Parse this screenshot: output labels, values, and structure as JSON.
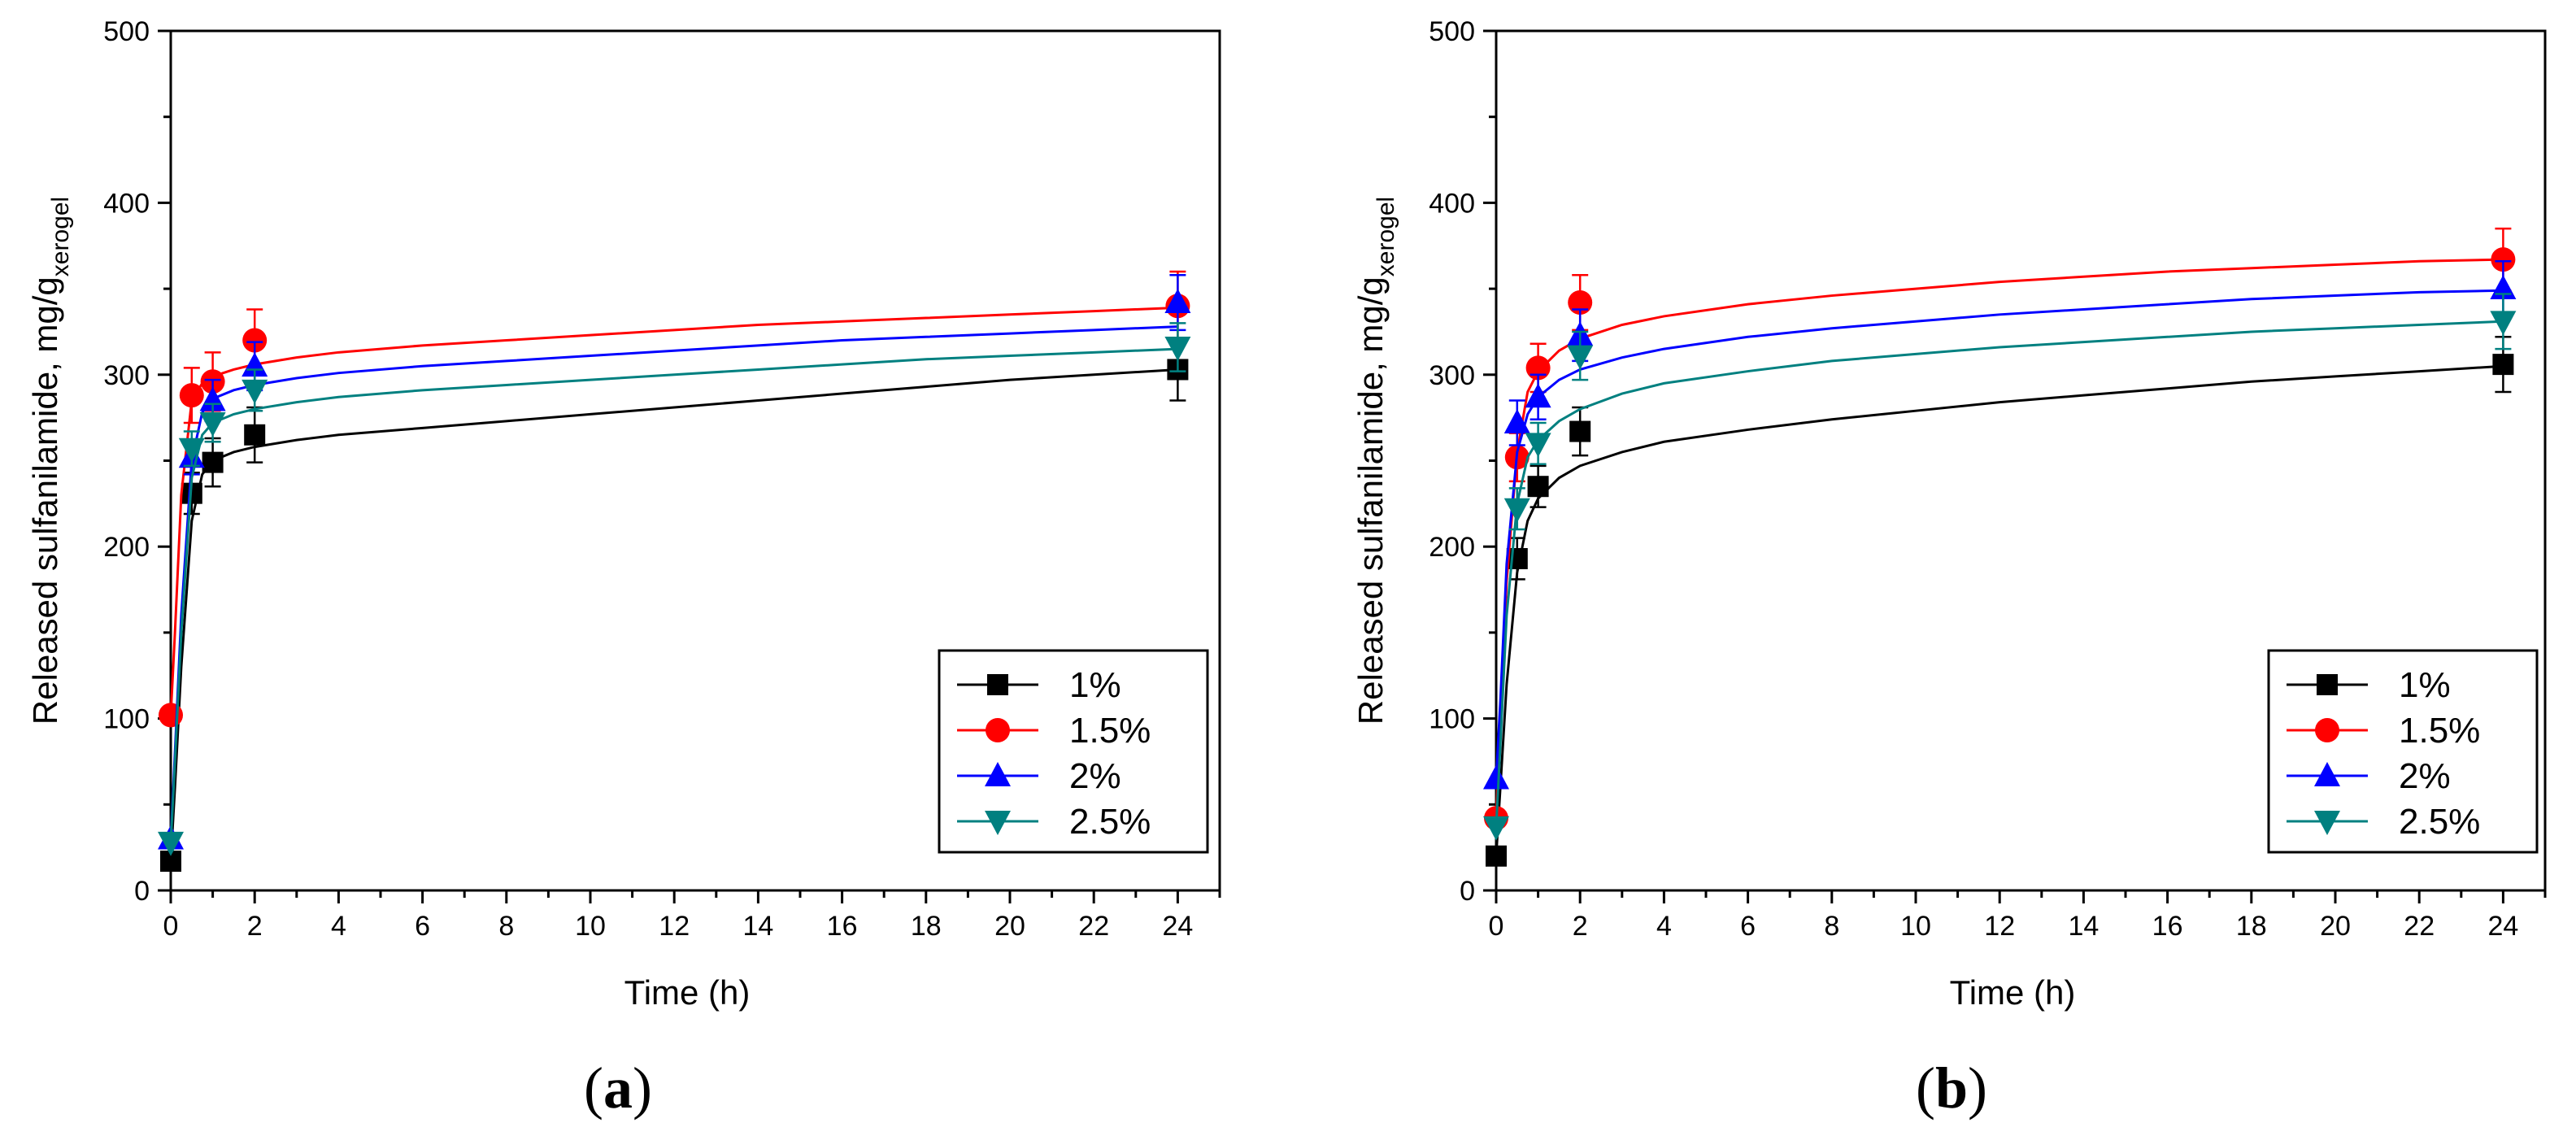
{
  "chart_data": [
    {
      "type": "scatter",
      "panel_label": "a",
      "panel_label_open": "(",
      "panel_label_close": ")",
      "xlabel": "Time (h)",
      "ylabel_main": "Released sulfanilamide, mg/g",
      "ylabel_sub": "xerogel",
      "xlim": [
        0,
        25
      ],
      "ylim": [
        0,
        500
      ],
      "xticks": [
        0,
        2,
        4,
        6,
        8,
        10,
        12,
        14,
        16,
        18,
        20,
        22,
        24
      ],
      "yticks": [
        0,
        100,
        200,
        300,
        400,
        500
      ],
      "legend_position": "lower-right",
      "series": [
        {
          "name": "1%",
          "color": "#000000",
          "marker": "square",
          "x": [
            0,
            0.5,
            1,
            2,
            24
          ],
          "y": [
            17,
            231,
            249,
            265,
            303
          ],
          "err": [
            0,
            12,
            14,
            16,
            18
          ],
          "fit_x": [
            0,
            0.1,
            0.25,
            0.5,
            0.75,
            1,
            1.5,
            2,
            3,
            4,
            6,
            8,
            10,
            12,
            14,
            16,
            18,
            20,
            22,
            24
          ],
          "fit_y": [
            17,
            60,
            130,
            215,
            242,
            250,
            255,
            258,
            262,
            265,
            269,
            273,
            277,
            281,
            285,
            289,
            293,
            297,
            300,
            303
          ]
        },
        {
          "name": "1.5%",
          "color": "#ff0000",
          "marker": "circle",
          "x": [
            0,
            0.5,
            1,
            2,
            24
          ],
          "y": [
            102,
            288,
            296,
            320,
            340
          ],
          "err": [
            0,
            16,
            17,
            18,
            20
          ],
          "fit_x": [
            0,
            0.1,
            0.25,
            0.5,
            0.75,
            1,
            1.5,
            2,
            3,
            4,
            6,
            8,
            10,
            12,
            14,
            16,
            18,
            20,
            22,
            24
          ],
          "fit_y": [
            102,
            150,
            230,
            285,
            295,
            299,
            303,
            306,
            310,
            313,
            317,
            320,
            323,
            326,
            329,
            331,
            333,
            335,
            337,
            339
          ]
        },
        {
          "name": "2%",
          "color": "#0000ff",
          "marker": "triangle-up",
          "x": [
            0,
            0.5,
            1,
            2,
            24
          ],
          "y": [
            30,
            252,
            285,
            305,
            342
          ],
          "err": [
            0,
            10,
            12,
            14,
            16
          ],
          "fit_x": [
            0,
            0.1,
            0.25,
            0.5,
            0.75,
            1,
            1.5,
            2,
            3,
            4,
            6,
            8,
            10,
            12,
            14,
            16,
            18,
            20,
            22,
            24
          ],
          "fit_y": [
            30,
            80,
            160,
            250,
            278,
            286,
            291,
            294,
            298,
            301,
            305,
            308,
            311,
            314,
            317,
            320,
            322,
            324,
            326,
            328
          ]
        },
        {
          "name": "2.5%",
          "color": "#008080",
          "marker": "triangle-down",
          "x": [
            0,
            0.5,
            1,
            2,
            24
          ],
          "y": [
            28,
            257,
            272,
            291,
            316
          ],
          "err": [
            0,
            10,
            11,
            12,
            14
          ],
          "fit_x": [
            0,
            0.1,
            0.25,
            0.5,
            0.75,
            1,
            1.5,
            2,
            3,
            4,
            6,
            8,
            10,
            12,
            14,
            16,
            18,
            20,
            22,
            24
          ],
          "fit_y": [
            28,
            75,
            150,
            240,
            265,
            272,
            277,
            280,
            284,
            287,
            291,
            294,
            297,
            300,
            303,
            306,
            309,
            311,
            313,
            315
          ]
        }
      ]
    },
    {
      "type": "scatter",
      "panel_label": "b",
      "panel_label_open": "(",
      "panel_label_close": ")",
      "xlabel": "Time (h)",
      "ylabel_main": "Released sulfanilamide, mg/g",
      "ylabel_sub": "xerogel",
      "xlim": [
        0,
        25
      ],
      "ylim": [
        0,
        500
      ],
      "xticks": [
        0,
        2,
        4,
        6,
        8,
        10,
        12,
        14,
        16,
        18,
        20,
        22,
        24
      ],
      "yticks": [
        0,
        100,
        200,
        300,
        400,
        500
      ],
      "legend_position": "lower-right",
      "series": [
        {
          "name": "1%",
          "color": "#000000",
          "marker": "square",
          "x": [
            0,
            0.5,
            1,
            2,
            24
          ],
          "y": [
            20,
            193,
            235,
            267,
            306
          ],
          "err": [
            0,
            12,
            12,
            14,
            16
          ],
          "fit_x": [
            0,
            0.1,
            0.25,
            0.5,
            0.75,
            1,
            1.5,
            2,
            3,
            4,
            6,
            8,
            10,
            12,
            14,
            16,
            18,
            20,
            22,
            24
          ],
          "fit_y": [
            20,
            60,
            120,
            185,
            215,
            228,
            240,
            247,
            255,
            261,
            268,
            274,
            279,
            284,
            288,
            292,
            296,
            299,
            302,
            305
          ]
        },
        {
          "name": "1.5%",
          "color": "#ff0000",
          "marker": "circle",
          "x": [
            0,
            0.5,
            1,
            2,
            24
          ],
          "y": [
            42,
            252,
            304,
            342,
            367
          ],
          "err": [
            0,
            14,
            14,
            16,
            18
          ],
          "fit_x": [
            0,
            0.1,
            0.25,
            0.5,
            0.75,
            1,
            1.5,
            2,
            3,
            4,
            6,
            8,
            10,
            12,
            14,
            16,
            18,
            20,
            22,
            24
          ],
          "fit_y": [
            42,
            100,
            180,
            255,
            290,
            302,
            314,
            321,
            329,
            334,
            341,
            346,
            350,
            354,
            357,
            360,
            362,
            364,
            366,
            367
          ]
        },
        {
          "name": "2%",
          "color": "#0000ff",
          "marker": "triangle-up",
          "x": [
            0,
            0.5,
            1,
            2,
            24
          ],
          "y": [
            65,
            272,
            287,
            323,
            350
          ],
          "err": [
            0,
            13,
            13,
            15,
            16
          ],
          "fit_x": [
            0,
            0.1,
            0.25,
            0.5,
            0.75,
            1,
            1.5,
            2,
            3,
            4,
            6,
            8,
            10,
            12,
            14,
            16,
            18,
            20,
            22,
            24
          ],
          "fit_y": [
            65,
            110,
            190,
            255,
            277,
            287,
            297,
            303,
            310,
            315,
            322,
            327,
            331,
            335,
            338,
            341,
            344,
            346,
            348,
            349
          ]
        },
        {
          "name": "2.5%",
          "color": "#008080",
          "marker": "triangle-down",
          "x": [
            0,
            0.5,
            1,
            2,
            24
          ],
          "y": [
            37,
            222,
            260,
            311,
            331
          ],
          "err": [
            0,
            12,
            12,
            14,
            16
          ],
          "fit_x": [
            0,
            0.1,
            0.25,
            0.5,
            0.75,
            1,
            1.5,
            2,
            3,
            4,
            6,
            8,
            10,
            12,
            14,
            16,
            18,
            20,
            22,
            24
          ],
          "fit_y": [
            37,
            85,
            160,
            225,
            252,
            262,
            273,
            280,
            289,
            295,
            302,
            308,
            312,
            316,
            319,
            322,
            325,
            327,
            329,
            331
          ]
        }
      ]
    }
  ]
}
